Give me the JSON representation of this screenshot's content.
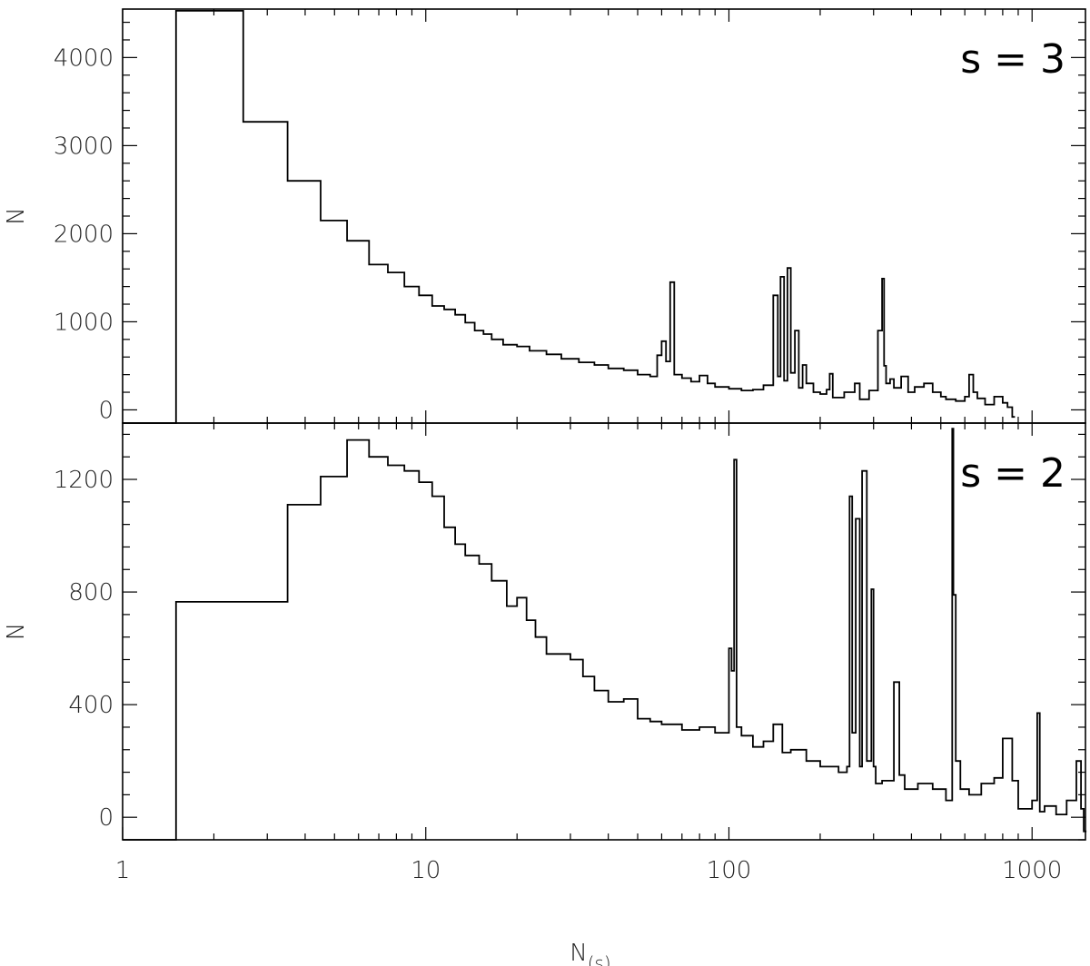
{
  "chart_data": [
    {
      "type": "line",
      "panel_label": "s = 3",
      "ylabel": "N",
      "xlabel": "",
      "xscale": "log",
      "xlim": [
        1,
        1500
      ],
      "ylim": [
        -150,
        4550
      ],
      "yticks": [
        0,
        1000,
        2000,
        3000,
        4000
      ],
      "ytick_labels": [
        "0",
        "1000",
        "2000",
        "3000",
        "4000"
      ],
      "grid": false,
      "legend": "none",
      "series": [
        {
          "style": "step",
          "color": "#000000",
          "x": [
            1.5,
            2.5,
            3.5,
            4.5,
            5.5,
            6.5,
            7.5,
            8.5,
            9.5,
            10.5,
            11.5,
            12.5,
            13.5,
            14.5,
            15.5,
            16.5,
            18,
            20,
            22,
            25,
            28,
            32,
            36,
            40,
            45,
            50,
            55,
            58,
            60,
            62,
            64,
            66,
            70,
            75,
            80,
            85,
            90,
            100,
            110,
            120,
            130,
            140,
            145,
            148,
            152,
            156,
            160,
            165,
            170,
            175,
            180,
            190,
            200,
            210,
            215,
            220,
            240,
            260,
            270,
            290,
            310,
            320,
            325,
            330,
            340,
            350,
            370,
            390,
            410,
            440,
            470,
            500,
            520,
            560,
            600,
            620,
            640,
            660,
            700,
            750,
            800,
            830,
            860
          ],
          "y": [
            4530,
            3270,
            2600,
            2150,
            1920,
            1650,
            1560,
            1400,
            1300,
            1180,
            1140,
            1080,
            990,
            900,
            860,
            800,
            740,
            720,
            670,
            630,
            580,
            540,
            510,
            470,
            450,
            400,
            380,
            620,
            780,
            550,
            1450,
            400,
            360,
            320,
            390,
            300,
            260,
            240,
            220,
            230,
            280,
            1300,
            380,
            1510,
            330,
            1610,
            420,
            900,
            250,
            510,
            300,
            200,
            180,
            230,
            410,
            140,
            200,
            300,
            120,
            220,
            900,
            1490,
            500,
            300,
            350,
            250,
            380,
            200,
            260,
            300,
            200,
            150,
            120,
            100,
            150,
            400,
            200,
            130,
            60,
            150,
            80,
            30,
            -80
          ]
        }
      ]
    },
    {
      "type": "line",
      "panel_label": "s = 2",
      "ylabel": "N",
      "xlabel": "N(s)",
      "xscale": "log",
      "xlim": [
        1,
        1500
      ],
      "ylim": [
        -80,
        1400
      ],
      "xticks": [
        1,
        10,
        100,
        1000
      ],
      "xtick_labels": [
        "1",
        "10",
        "100",
        "1000"
      ],
      "yticks": [
        0,
        400,
        800,
        1200
      ],
      "ytick_labels": [
        "0",
        "400",
        "800",
        "1200"
      ],
      "grid": false,
      "legend": "none",
      "series": [
        {
          "style": "step",
          "color": "#000000",
          "x": [
            1.5,
            2.5,
            3.5,
            4.5,
            5.5,
            6.5,
            7.5,
            8.5,
            9.5,
            10.5,
            11.5,
            12.5,
            13.5,
            15,
            16.5,
            18.5,
            20,
            21.5,
            23,
            25,
            27.5,
            30,
            33,
            36,
            40,
            45,
            50,
            55,
            60,
            70,
            80,
            90,
            98,
            100,
            102,
            104,
            106,
            110,
            120,
            130,
            140,
            150,
            160,
            180,
            200,
            230,
            245,
            250,
            255,
            262,
            270,
            275,
            285,
            295,
            300,
            305,
            320,
            350,
            365,
            380,
            420,
            470,
            520,
            545,
            550,
            560,
            580,
            620,
            680,
            750,
            800,
            860,
            900,
            1000,
            1040,
            1060,
            1100,
            1200,
            1300,
            1400,
            1450,
            1480
          ],
          "y": [
            765,
            765,
            1110,
            1210,
            1340,
            1280,
            1250,
            1230,
            1190,
            1140,
            1030,
            970,
            930,
            900,
            840,
            750,
            780,
            700,
            640,
            580,
            580,
            560,
            500,
            450,
            410,
            420,
            350,
            340,
            330,
            310,
            320,
            300,
            300,
            600,
            520,
            1270,
            320,
            290,
            250,
            270,
            330,
            230,
            240,
            200,
            180,
            160,
            180,
            1140,
            300,
            1060,
            180,
            1230,
            200,
            810,
            180,
            120,
            130,
            480,
            150,
            100,
            120,
            100,
            60,
            1380,
            790,
            200,
            100,
            80,
            120,
            140,
            280,
            130,
            30,
            60,
            370,
            20,
            40,
            10,
            60,
            200,
            30,
            -50
          ]
        }
      ]
    }
  ]
}
